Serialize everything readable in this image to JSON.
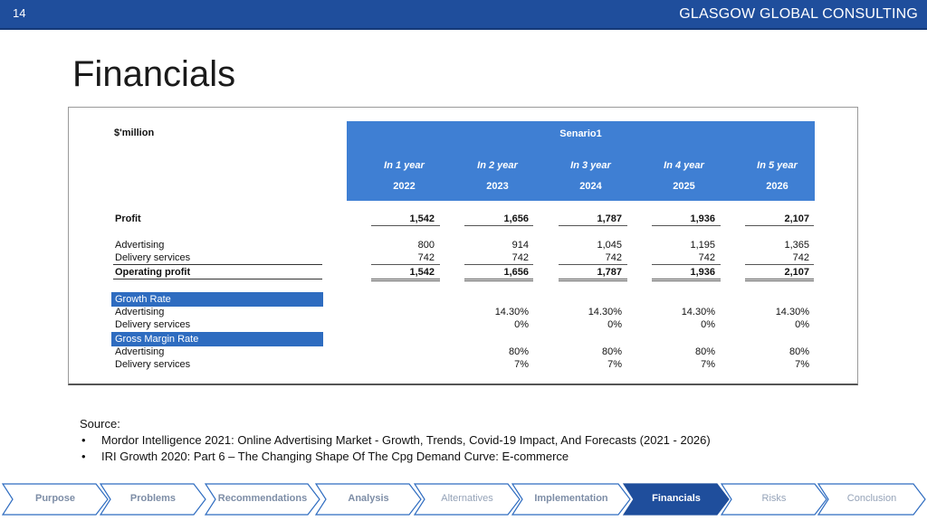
{
  "header": {
    "slide_number": "14",
    "company": "GLASGOW GLOBAL CONSULTING"
  },
  "title": "Financials",
  "table": {
    "unit": "$'million",
    "scenario": "Senario1",
    "columns": [
      {
        "label": "In 1 year",
        "year": "2022"
      },
      {
        "label": "In 2 year",
        "year": "2023"
      },
      {
        "label": "In 3 year",
        "year": "2024"
      },
      {
        "label": "In 4 year",
        "year": "2025"
      },
      {
        "label": "In 5 year",
        "year": "2026"
      }
    ],
    "profit": {
      "label": "Profit",
      "values": [
        "1,542",
        "1,656",
        "1,787",
        "1,936",
        "2,107"
      ]
    },
    "advertising": {
      "label": "Advertising",
      "values": [
        "800",
        "914",
        "1,045",
        "1,195",
        "1,365"
      ]
    },
    "delivery": {
      "label": "Delivery services",
      "values": [
        "742",
        "742",
        "742",
        "742",
        "742"
      ]
    },
    "operating": {
      "label": "Operating profit",
      "values": [
        "1,542",
        "1,656",
        "1,787",
        "1,936",
        "2,107"
      ]
    },
    "growth_header": "Growth Rate",
    "growth_adv": {
      "label": "Advertising",
      "values": [
        "",
        "14.30%",
        "14.30%",
        "14.30%",
        "14.30%"
      ]
    },
    "growth_del": {
      "label": "Delivery services",
      "values": [
        "",
        "0%",
        "0%",
        "0%",
        "0%"
      ]
    },
    "margin_header": "Gross Margin Rate",
    "margin_adv": {
      "label": "Advertising",
      "values": [
        "",
        "80%",
        "80%",
        "80%",
        "80%"
      ]
    },
    "margin_del": {
      "label": "Delivery services",
      "values": [
        "",
        "7%",
        "7%",
        "7%",
        "7%"
      ]
    }
  },
  "source": {
    "heading": "Source:",
    "items": [
      "Mordor Intelligence 2021: Online Advertising Market - Growth, Trends, Covid-19 Impact, And Forecasts (2021 - 2026)",
      "IRI Growth 2020: Part 6 – The Changing Shape Of The Cpg Demand Curve: E-commerce"
    ]
  },
  "nav": {
    "steps": [
      {
        "label": "Purpose",
        "state": "done"
      },
      {
        "label": "Problems",
        "state": "done"
      },
      {
        "label": "Recommendations",
        "state": "done"
      },
      {
        "label": "Analysis",
        "state": "done"
      },
      {
        "label": "Alternatives",
        "state": "inactive"
      },
      {
        "label": "Implementation",
        "state": "done"
      },
      {
        "label": "Financials",
        "state": "active"
      },
      {
        "label": "Risks",
        "state": "inactive"
      },
      {
        "label": "Conclusion",
        "state": "inactive"
      }
    ],
    "colors": {
      "active": "#1f4e9c",
      "border": "#2e6cc0",
      "fill": "#ffffff"
    }
  }
}
